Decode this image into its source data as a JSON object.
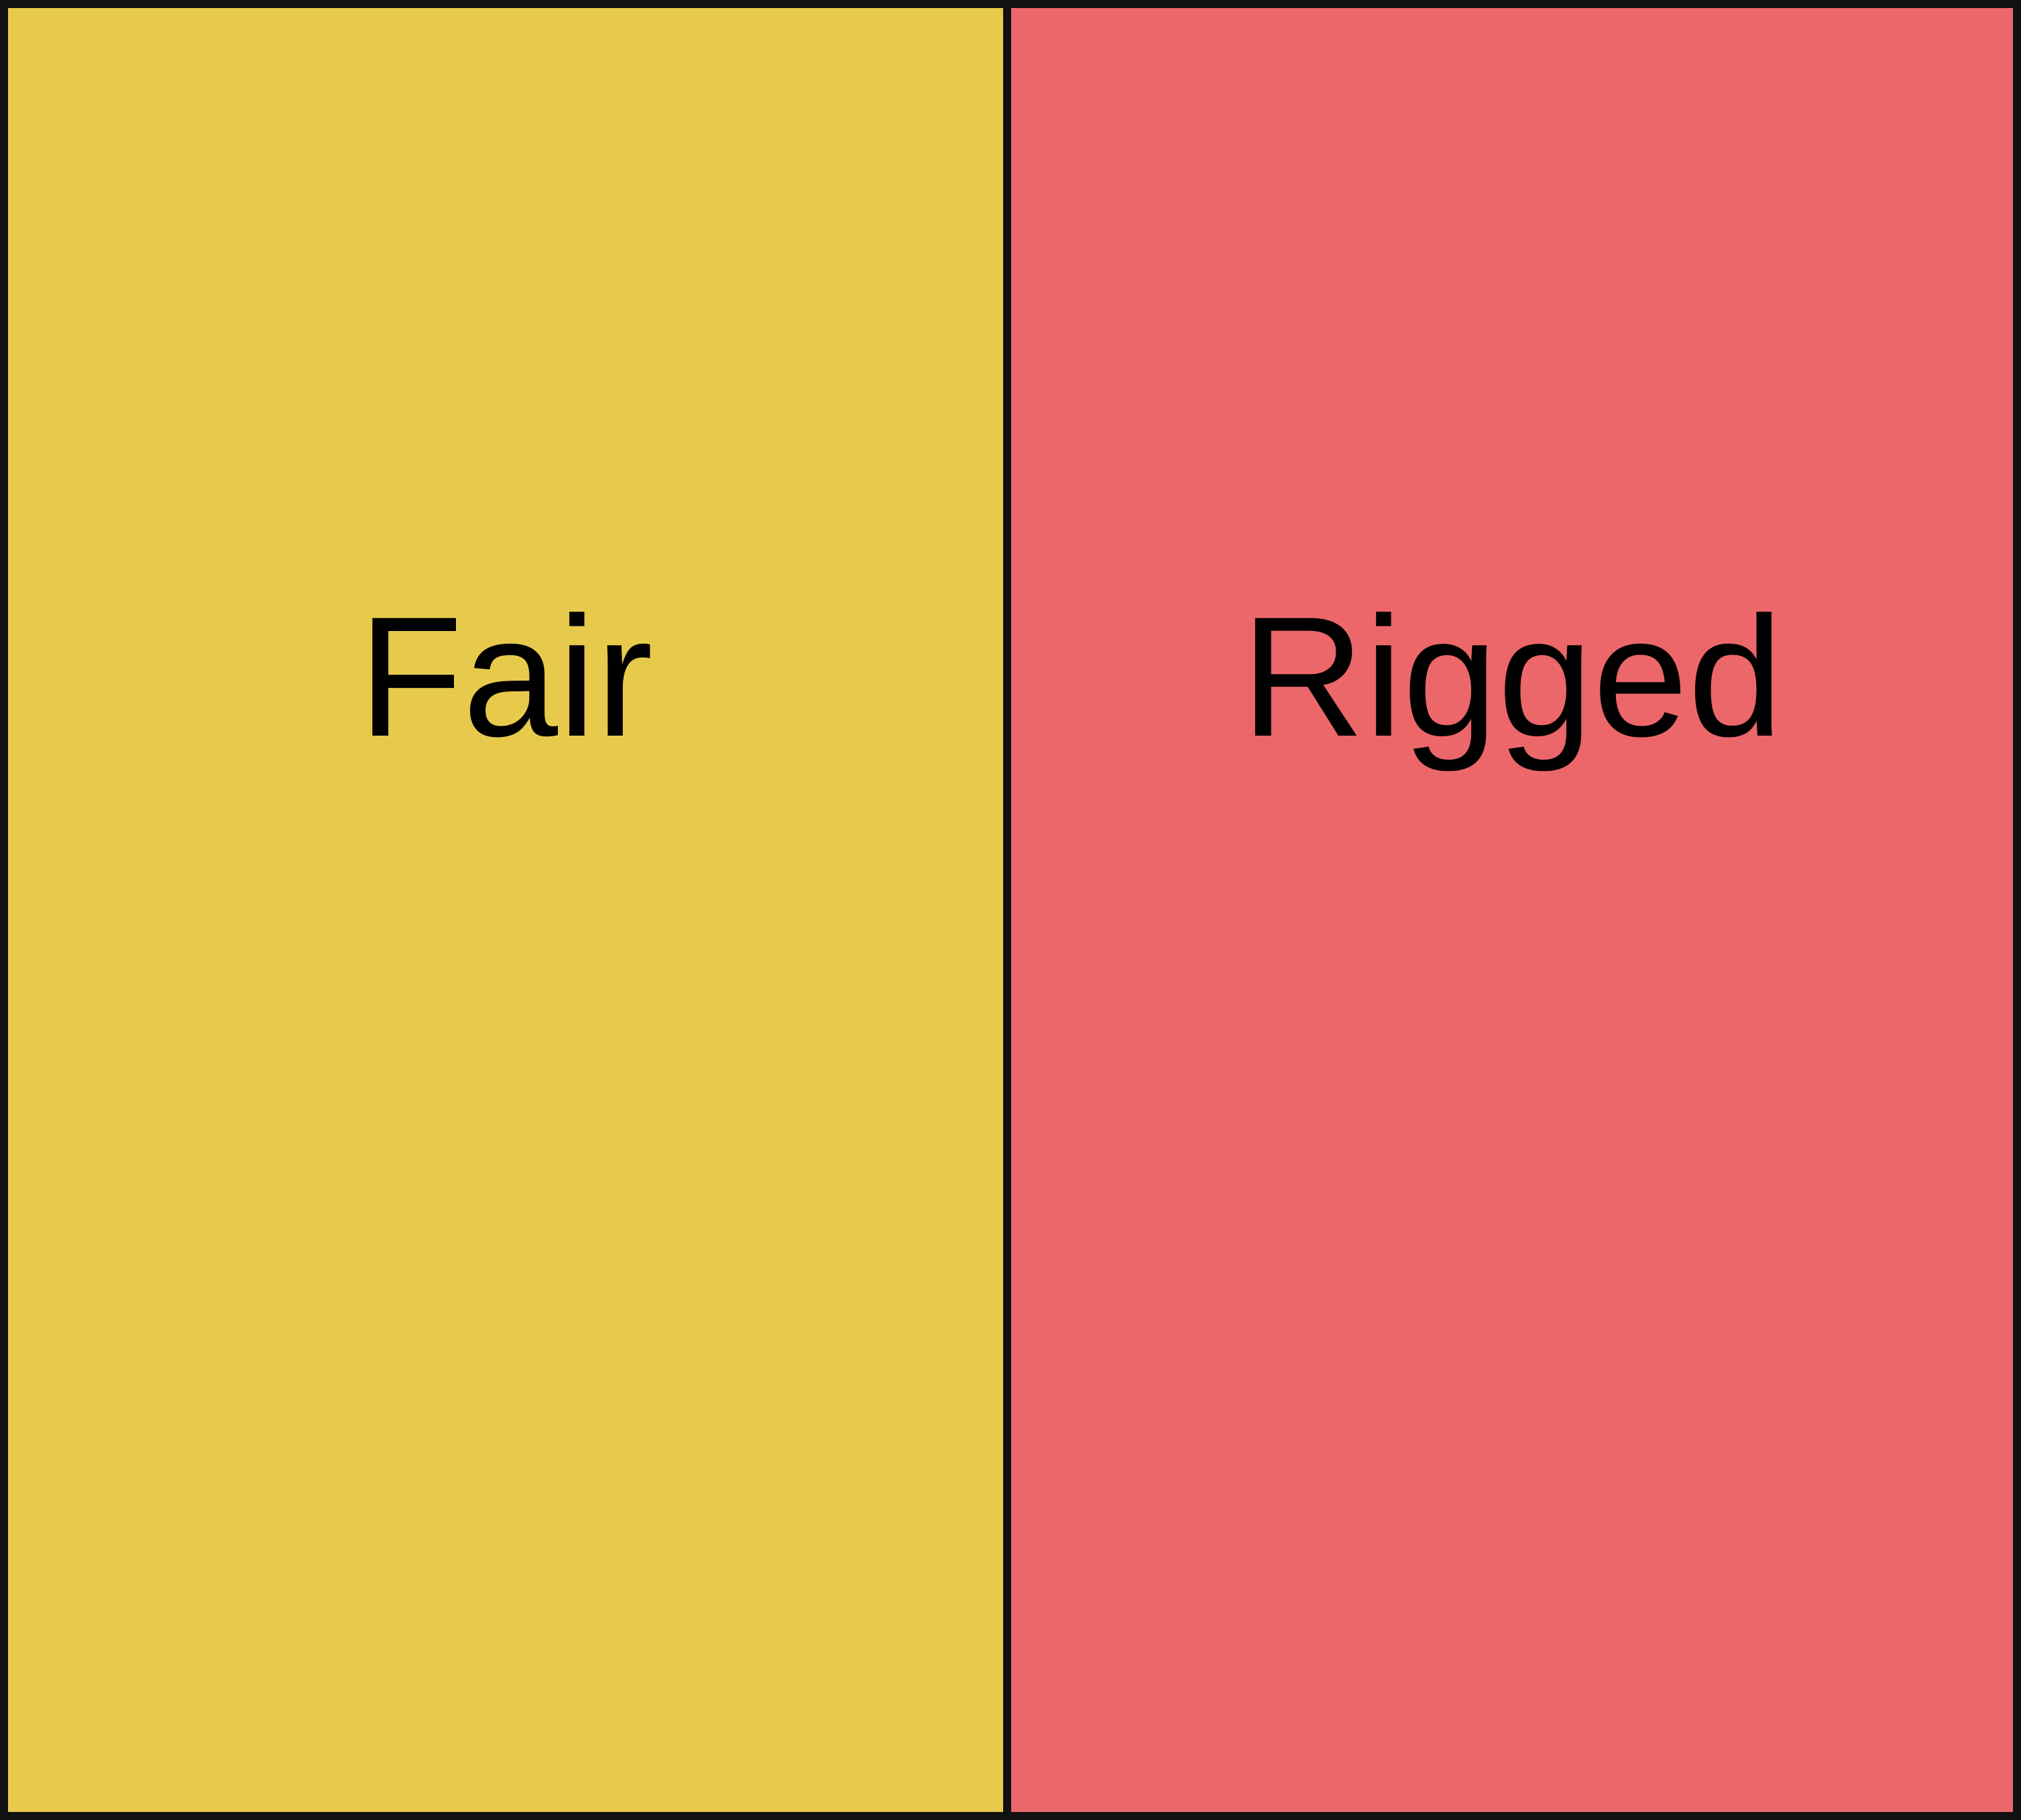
{
  "panels": [
    {
      "label": "Fair",
      "color": "#E7CA4C"
    },
    {
      "label": "Rigged",
      "color": "#EC6769"
    }
  ],
  "border_color": "#111111"
}
